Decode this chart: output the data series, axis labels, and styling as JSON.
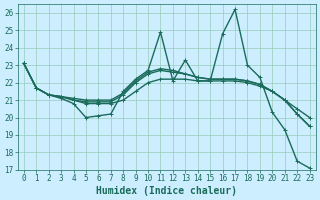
{
  "xlabel": "Humidex (Indice chaleur)",
  "bg_color": "#cceeff",
  "grid_color": "#99ccbb",
  "line_color": "#1a6b5a",
  "axis_color": "#1a6b5a",
  "xlim": [
    -0.5,
    23.5
  ],
  "ylim": [
    17,
    26.5
  ],
  "yticks": [
    17,
    18,
    19,
    20,
    21,
    22,
    23,
    24,
    25,
    26
  ],
  "xticks": [
    0,
    1,
    2,
    3,
    4,
    5,
    6,
    7,
    8,
    9,
    10,
    11,
    12,
    13,
    14,
    15,
    16,
    17,
    18,
    19,
    20,
    21,
    22,
    23
  ],
  "series": [
    [
      23.1,
      21.7,
      21.3,
      21.1,
      20.8,
      20.0,
      20.1,
      20.2,
      21.5,
      22.2,
      22.7,
      24.9,
      22.1,
      23.3,
      22.1,
      22.1,
      24.8,
      26.2,
      23.0,
      22.3,
      20.3,
      19.3,
      17.5,
      17.1
    ],
    [
      23.1,
      21.7,
      21.3,
      21.2,
      21.0,
      20.8,
      20.8,
      20.8,
      21.0,
      21.5,
      22.0,
      22.2,
      22.2,
      22.2,
      22.1,
      22.1,
      22.1,
      22.1,
      22.0,
      21.8,
      21.5,
      21.0,
      20.5,
      20.0
    ],
    [
      23.1,
      21.7,
      21.3,
      21.2,
      21.0,
      20.9,
      20.9,
      20.9,
      21.3,
      22.0,
      22.5,
      22.7,
      22.6,
      22.5,
      22.3,
      22.2,
      22.2,
      22.2,
      22.1,
      21.9,
      21.5,
      21.0,
      20.2,
      19.5
    ],
    [
      23.1,
      21.7,
      21.3,
      21.2,
      21.1,
      21.0,
      21.0,
      21.0,
      21.4,
      22.1,
      22.6,
      22.8,
      22.7,
      22.5,
      22.3,
      22.2,
      22.2,
      22.2,
      22.1,
      21.9,
      21.5,
      21.0,
      20.2,
      19.5
    ]
  ],
  "linewidths": [
    1.0,
    1.0,
    1.0,
    1.0
  ],
  "tick_fontsize": 5.5,
  "xlabel_fontsize": 7.0,
  "xlabel_fontweight": "bold"
}
